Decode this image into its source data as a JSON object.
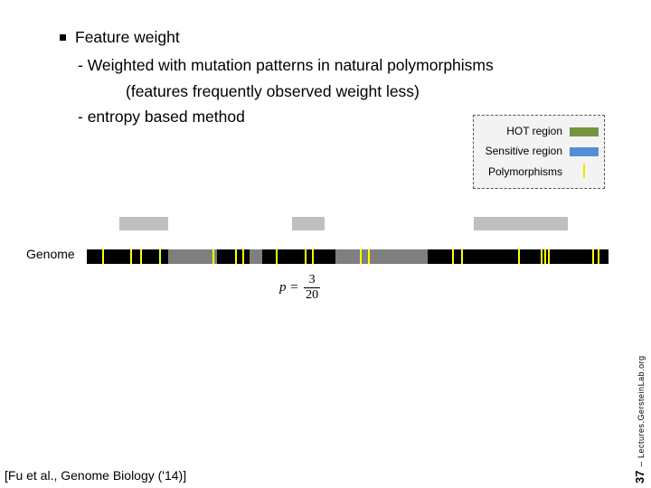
{
  "bullet": {
    "title": "Feature weight",
    "sub1": "- Weighted with mutation patterns in natural polymorphisms",
    "sub2": "(features frequently observed weight less)",
    "sub3": "- entropy based method"
  },
  "legend": {
    "items": [
      {
        "label": "HOT region",
        "color": "#77933c"
      },
      {
        "label": "Sensitive region",
        "color": "#558ed5"
      },
      {
        "label": "Polymorphisms",
        "color": "#f2e100"
      }
    ]
  },
  "genome": {
    "label": "Genome",
    "colors": {
      "bar": "#000000",
      "region": "#7f7f7f",
      "upper_box": "#bfbfbf",
      "polymorphism": "#ffff00"
    }
  },
  "formula": {
    "var": "p",
    "numerator": "3",
    "denominator": "20"
  },
  "citation": "[Fu et al., Genome Biology ('14)]",
  "footer": {
    "slide_number": "37",
    "separator": "–",
    "credit": "Lectures.GersteinLab.org"
  }
}
